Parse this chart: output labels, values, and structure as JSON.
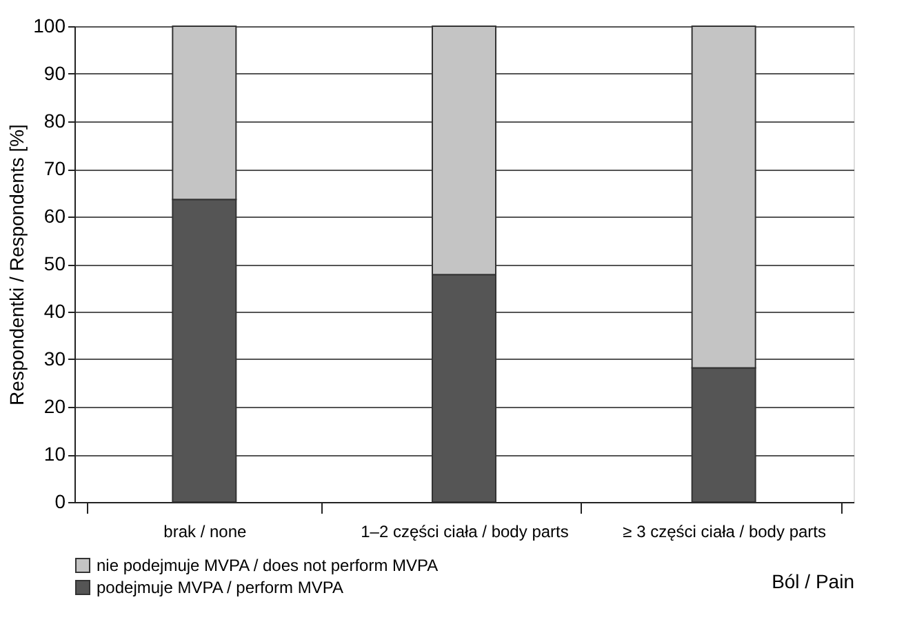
{
  "chart_data": {
    "type": "bar",
    "stacked": true,
    "xlabel": "Ból / Pain",
    "ylabel": "Respondentki / Respondents [%]",
    "categories": [
      "brak / none",
      "1–2 części ciała / body parts",
      "≥ 3 części ciała / body parts"
    ],
    "series": [
      {
        "name": "podejmuje MVPA / perform MVPA",
        "color": "#555555",
        "values": [
          63.6,
          47.8,
          28.2
        ]
      },
      {
        "name": "nie podejmuje MVPA / does not perform MVPA",
        "color": "#c4c4c4",
        "values": [
          36.4,
          52.2,
          71.8
        ]
      }
    ],
    "ylim": [
      0,
      100
    ],
    "yticks": [
      0,
      10,
      20,
      30,
      40,
      50,
      60,
      70,
      80,
      90,
      100
    ],
    "grid": "y",
    "legend": "bottom left"
  }
}
